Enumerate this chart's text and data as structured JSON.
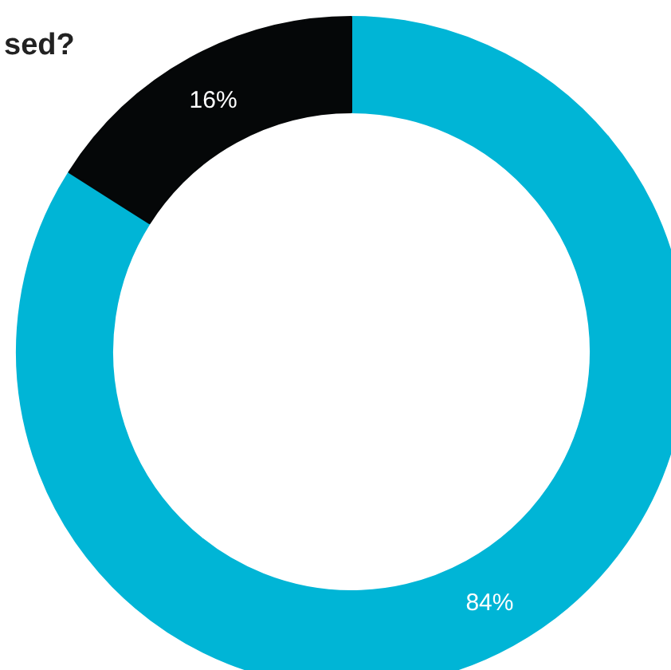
{
  "chart_data": {
    "type": "donut",
    "title": "sed?",
    "categories": [
      null,
      null
    ],
    "values": [
      84,
      16
    ],
    "colors": [
      "#00b5d6",
      "#050708"
    ],
    "value_labels": [
      "84%",
      "16%"
    ]
  }
}
